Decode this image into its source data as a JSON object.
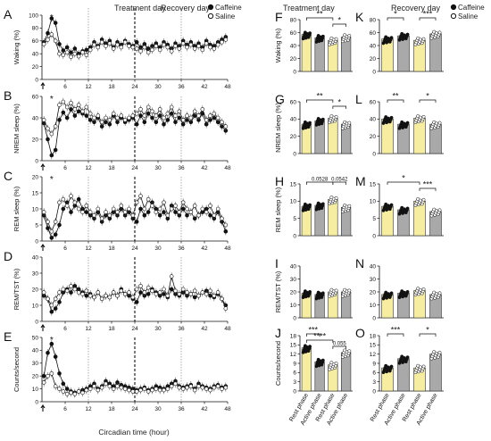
{
  "figure": {
    "panel_letters": [
      "A",
      "B",
      "C",
      "D",
      "E",
      "F",
      "G",
      "H",
      "I",
      "J",
      "K",
      "L",
      "M",
      "N",
      "O"
    ],
    "headers": {
      "treatment": "Treatment day",
      "recovery": "Recovery day"
    },
    "legend": {
      "caffeine": "Caffeine",
      "saline": "Saline"
    },
    "colors": {
      "caffeine": "#111111",
      "saline": "#ffffff",
      "bar_rest": "#f6eda0",
      "bar_active": "#a9a9a9"
    },
    "time_axis": {
      "label": "Circadian time (hour)",
      "ticks": [
        6,
        12,
        18,
        24,
        30,
        36,
        42,
        48
      ],
      "dashed_lines": [
        12,
        24,
        36
      ],
      "bold_dashed": 24,
      "arrow_at": 0
    },
    "bar_categories": [
      "Rest phase",
      "Active phase",
      "Rest phase",
      "Active phase"
    ]
  },
  "chart_data": [
    {
      "panel": "A",
      "type": "line",
      "ylabel": "Waking (%)",
      "ylim": [
        0,
        100
      ],
      "yticks": [
        0,
        20,
        40,
        60,
        80,
        100
      ],
      "annotation": "*",
      "series": [
        {
          "name": "Caffeine",
          "values": [
            58,
            72,
            95,
            88,
            55,
            45,
            50,
            42,
            48,
            40,
            44,
            46,
            50,
            58,
            52,
            62,
            56,
            60,
            50,
            58,
            54,
            60,
            55,
            52,
            58,
            50,
            55,
            48,
            52,
            56,
            50,
            58,
            54,
            48,
            56,
            52,
            60,
            54,
            58,
            52,
            56,
            50,
            60,
            54,
            52,
            58,
            62,
            66
          ]
        },
        {
          "name": "Saline",
          "values": [
            55,
            62,
            70,
            60,
            40,
            38,
            42,
            35,
            40,
            36,
            42,
            38,
            46,
            54,
            50,
            58,
            52,
            56,
            48,
            54,
            50,
            58,
            52,
            50,
            48,
            44,
            50,
            42,
            46,
            52,
            46,
            54,
            50,
            44,
            52,
            48,
            56,
            50,
            54,
            48,
            52,
            46,
            56,
            50,
            48,
            54,
            58,
            62
          ]
        }
      ]
    },
    {
      "panel": "B",
      "type": "line",
      "ylabel": "NREM sleep (%)",
      "ylim": [
        0,
        60
      ],
      "yticks": [
        0,
        20,
        40,
        60
      ],
      "annotation": "*",
      "series": [
        {
          "name": "Caffeine",
          "values": [
            35,
            20,
            5,
            10,
            38,
            45,
            40,
            48,
            42,
            46,
            44,
            42,
            38,
            36,
            40,
            32,
            36,
            34,
            42,
            36,
            40,
            36,
            38,
            40,
            34,
            42,
            36,
            44,
            40,
            36,
            42,
            34,
            38,
            44,
            36,
            40,
            34,
            38,
            36,
            42,
            38,
            44,
            34,
            38,
            40,
            36,
            32,
            28
          ]
        },
        {
          "name": "Saline",
          "values": [
            38,
            30,
            25,
            32,
            52,
            55,
            50,
            54,
            48,
            52,
            46,
            50,
            44,
            40,
            42,
            36,
            40,
            38,
            44,
            40,
            42,
            38,
            40,
            42,
            44,
            48,
            42,
            50,
            46,
            42,
            48,
            40,
            44,
            50,
            42,
            46,
            38,
            42,
            40,
            46,
            42,
            48,
            38,
            42,
            44,
            40,
            36,
            32
          ]
        }
      ]
    },
    {
      "panel": "C",
      "type": "line",
      "ylabel": "REM sleep (%)",
      "ylim": [
        0,
        20
      ],
      "yticks": [
        0,
        5,
        10,
        15,
        20
      ],
      "annotation": "*",
      "series": [
        {
          "name": "Caffeine",
          "values": [
            8,
            4,
            1,
            2,
            5,
            10,
            12,
            9,
            11,
            13,
            10,
            9,
            8,
            7,
            9,
            6,
            8,
            7,
            9,
            8,
            10,
            8,
            9,
            7,
            6,
            10,
            8,
            9,
            12,
            10,
            8,
            9,
            7,
            11,
            9,
            8,
            10,
            8,
            9,
            7,
            8,
            9,
            10,
            8,
            7,
            9,
            6,
            3
          ]
        },
        {
          "name": "Saline",
          "values": [
            9,
            6,
            3,
            6,
            12,
            13,
            11,
            14,
            12,
            10,
            9,
            11,
            9,
            8,
            10,
            7,
            9,
            8,
            10,
            9,
            11,
            9,
            10,
            8,
            12,
            14,
            10,
            13,
            11,
            9,
            10,
            12,
            8,
            10,
            11,
            9,
            12,
            10,
            9,
            11,
            8,
            10,
            9,
            11,
            8,
            10,
            7,
            5
          ]
        }
      ]
    },
    {
      "panel": "D",
      "type": "line",
      "ylabel": "REM/TST (%)",
      "ylim": [
        0,
        40
      ],
      "yticks": [
        0,
        10,
        20,
        30,
        40
      ],
      "series": [
        {
          "name": "Caffeine",
          "values": [
            16,
            14,
            6,
            8,
            12,
            18,
            20,
            18,
            22,
            20,
            18,
            16,
            17,
            15,
            18,
            14,
            16,
            15,
            18,
            16,
            20,
            17,
            16,
            14,
            12,
            18,
            16,
            17,
            20,
            18,
            16,
            17,
            15,
            20,
            17,
            16,
            18,
            16,
            17,
            15,
            16,
            18,
            19,
            16,
            15,
            17,
            14,
            10
          ]
        },
        {
          "name": "Saline",
          "values": [
            18,
            14,
            10,
            14,
            18,
            20,
            19,
            22,
            20,
            18,
            17,
            19,
            16,
            15,
            18,
            14,
            16,
            15,
            18,
            16,
            19,
            17,
            18,
            15,
            20,
            22,
            18,
            21,
            19,
            17,
            18,
            20,
            16,
            28,
            19,
            17,
            20,
            18,
            17,
            19,
            16,
            18,
            17,
            19,
            16,
            18,
            14,
            8
          ]
        }
      ]
    },
    {
      "panel": "E",
      "type": "line",
      "ylabel": "Counts/second",
      "ylim": [
        0,
        50
      ],
      "yticks": [
        0,
        10,
        20,
        30,
        40,
        50
      ],
      "annotation": "*",
      "series": [
        {
          "name": "Caffeine",
          "values": [
            20,
            38,
            45,
            35,
            22,
            14,
            10,
            8,
            7,
            8,
            9,
            10,
            12,
            14,
            10,
            12,
            16,
            14,
            12,
            15,
            13,
            12,
            11,
            10,
            9,
            10,
            11,
            9,
            10,
            12,
            11,
            10,
            12,
            14,
            16,
            12,
            11,
            12,
            13,
            10,
            14,
            12,
            11,
            10,
            12,
            13,
            11,
            12
          ]
        },
        {
          "name": "Saline",
          "values": [
            15,
            20,
            22,
            12,
            10,
            8,
            6,
            7,
            6,
            8,
            7,
            9,
            10,
            12,
            9,
            11,
            14,
            12,
            10,
            12,
            11,
            10,
            9,
            8,
            8,
            9,
            10,
            8,
            9,
            10,
            9,
            9,
            10,
            12,
            14,
            11,
            10,
            11,
            12,
            9,
            12,
            11,
            10,
            9,
            11,
            12,
            10,
            11
          ]
        }
      ]
    },
    {
      "panel": "F",
      "type": "bar",
      "ylabel": "Waking (%)",
      "ylim": [
        0,
        80
      ],
      "yticks": [
        0,
        20,
        40,
        60,
        80
      ],
      "values": [
        57,
        52,
        48,
        53
      ],
      "sig": [
        {
          "from": 0,
          "to": 2,
          "label": "**",
          "level": 0
        },
        {
          "from": 2,
          "to": 3,
          "label": "*",
          "level": 1
        }
      ]
    },
    {
      "panel": "G",
      "type": "bar",
      "ylabel": "NREM sleep (%)",
      "ylim": [
        0,
        60
      ],
      "yticks": [
        0,
        20,
        40,
        60
      ],
      "values": [
        34,
        38,
        41,
        34
      ],
      "sig": [
        {
          "from": 0,
          "to": 2,
          "label": "**",
          "level": 0
        },
        {
          "from": 2,
          "to": 3,
          "label": "*",
          "level": 1
        }
      ]
    },
    {
      "panel": "H",
      "type": "bar",
      "ylabel": "REM sleep (%)",
      "ylim": [
        0,
        15
      ],
      "yticks": [
        0,
        5,
        10,
        15
      ],
      "values": [
        8.5,
        8.8,
        10.5,
        8.2
      ],
      "sig": [
        {
          "from": 0,
          "to": 2,
          "label": "0.0528",
          "level": 0
        },
        {
          "from": 2,
          "to": 3,
          "label": "0.0542",
          "level": 0
        }
      ]
    },
    {
      "panel": "I",
      "type": "bar",
      "ylabel": "REM/TST (%)",
      "ylim": [
        0,
        40
      ],
      "yticks": [
        0,
        10,
        20,
        30,
        40
      ],
      "values": [
        19,
        18,
        20,
        20
      ],
      "sig": []
    },
    {
      "panel": "J",
      "type": "bar",
      "ylabel": "Counts/second",
      "ylim": [
        0,
        18
      ],
      "yticks": [
        0,
        3,
        6,
        9,
        12,
        15,
        18
      ],
      "values": [
        14,
        9.5,
        8.5,
        12.5
      ],
      "sig": [
        {
          "from": 0,
          "to": 1,
          "label": "***",
          "level": 0
        },
        {
          "from": 0,
          "to": 2,
          "label": "****",
          "level": 1
        },
        {
          "from": 2,
          "to": 3,
          "label": "0.055",
          "level": 2
        }
      ]
    },
    {
      "panel": "K",
      "type": "bar",
      "ylabel": "",
      "ylim": [
        0,
        80
      ],
      "yticks": [
        0,
        20,
        40,
        60,
        80
      ],
      "values": [
        50,
        55,
        48,
        58
      ],
      "sig": [
        {
          "from": 0,
          "to": 1,
          "label": "*",
          "level": 0
        },
        {
          "from": 2,
          "to": 3,
          "label": "***",
          "level": 0
        }
      ]
    },
    {
      "panel": "L",
      "type": "bar",
      "ylabel": "",
      "ylim": [
        0,
        60
      ],
      "yticks": [
        0,
        20,
        40,
        60
      ],
      "values": [
        40,
        34,
        41,
        34
      ],
      "sig": [
        {
          "from": 0,
          "to": 1,
          "label": "**",
          "level": 0
        },
        {
          "from": 2,
          "to": 3,
          "label": "*",
          "level": 0
        }
      ]
    },
    {
      "panel": "M",
      "type": "bar",
      "ylabel": "",
      "ylim": [
        0,
        15
      ],
      "yticks": [
        0,
        5,
        10,
        15
      ],
      "values": [
        8.5,
        7.5,
        10,
        7
      ],
      "sig": [
        {
          "from": 0,
          "to": 2,
          "label": "*",
          "level": 0
        },
        {
          "from": 2,
          "to": 3,
          "label": "***",
          "level": 1
        }
      ]
    },
    {
      "panel": "N",
      "type": "bar",
      "ylabel": "",
      "ylim": [
        0,
        40
      ],
      "yticks": [
        0,
        10,
        20,
        30,
        40
      ],
      "values": [
        18,
        19,
        21,
        18
      ],
      "sig": []
    },
    {
      "panel": "O",
      "type": "bar",
      "ylabel": "",
      "ylim": [
        0,
        18
      ],
      "yticks": [
        0,
        3,
        6,
        9,
        12,
        15,
        18
      ],
      "values": [
        7.5,
        10.5,
        7.5,
        12
      ],
      "sig": [
        {
          "from": 0,
          "to": 1,
          "label": "***",
          "level": 0
        },
        {
          "from": 2,
          "to": 3,
          "label": "*",
          "level": 0
        }
      ]
    }
  ]
}
